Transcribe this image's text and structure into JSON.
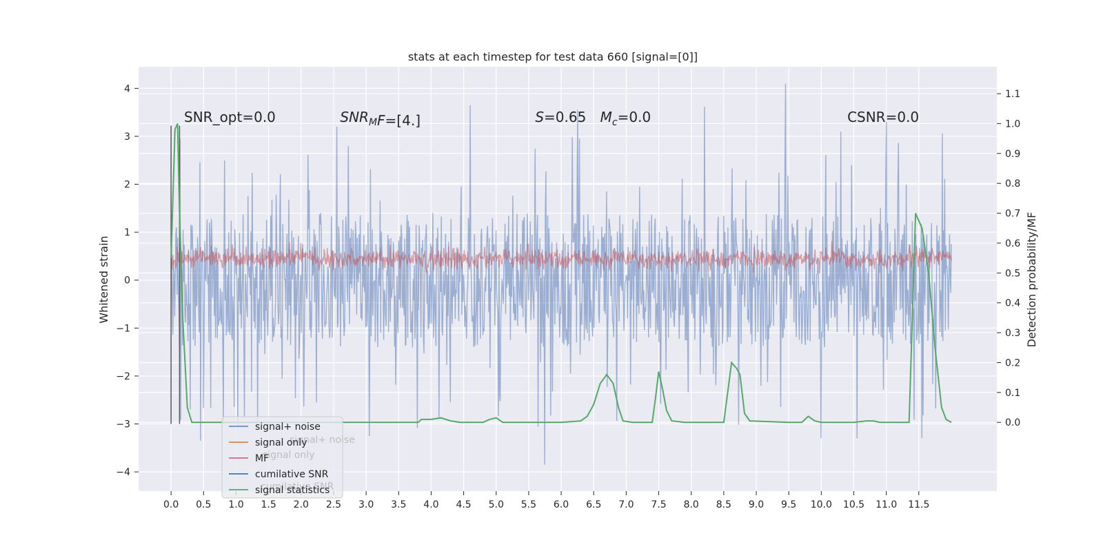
{
  "chart_data": {
    "type": "line",
    "title": "stats at each timestep for test data 660 [signal=[0]]",
    "xlabel": "",
    "ylabel_left": "Whitened strain",
    "ylabel_right": "Detection probability/MF",
    "xlim": [
      -0.5,
      12.7
    ],
    "ylim_left": [
      -4.4,
      4.45
    ],
    "ylim_right": [
      -0.23,
      1.19
    ],
    "x_ticks": [
      "0.0",
      "0.5",
      "1.0",
      "1.5",
      "2.0",
      "2.5",
      "3.0",
      "3.5",
      "4.0",
      "4.5",
      "5.0",
      "5.5",
      "6.0",
      "6.5",
      "7.0",
      "7.5",
      "8.0",
      "8.5",
      "9.0",
      "9.5",
      "10.0",
      "10.5",
      "11.0",
      "11.5"
    ],
    "y_ticks_left": [
      -4,
      -3,
      -2,
      -1,
      0,
      1,
      2,
      3,
      4
    ],
    "y_ticks_right": [
      "0.0",
      "0.1",
      "0.2",
      "0.3",
      "0.4",
      "0.5",
      "0.6",
      "0.7",
      "0.8",
      "0.9",
      "1.0",
      "1.1"
    ],
    "grid": true,
    "background": "#eaeaf2",
    "legend_location": "lower-left",
    "annotations": [
      {
        "id": "snr-opt",
        "text": "SNR_opt=0.0",
        "x": 0.2
      },
      {
        "id": "snr-mf",
        "math": true,
        "base": "SNR",
        "sub": "M",
        "rest": "F=[4.]",
        "x": 2.6
      },
      {
        "id": "s-val",
        "math": true,
        "italic": "S",
        "rest": "=0.65",
        "x": 5.6
      },
      {
        "id": "mc-val",
        "math": true,
        "base": "M",
        "sub": "c",
        "rest": "=0.0",
        "x": 6.6
      },
      {
        "id": "csnr",
        "text": "CSNR=0.0",
        "x": 10.4
      }
    ],
    "annotation_y": 3.3,
    "series": [
      {
        "name": "signal+ noise",
        "axis": "left",
        "color": "#4c72b0",
        "alpha": 0.5,
        "style": "noise-band",
        "x_range": [
          0.0,
          12.0
        ],
        "core_range": [
          -1.3,
          1.35
        ],
        "peak_max": 4.1,
        "trough_min": -3.85,
        "peaks": [
          [
            9.45,
            4.1
          ],
          [
            4.6,
            3.65
          ],
          [
            8.2,
            3.62
          ],
          [
            6.25,
            3.55
          ],
          [
            11.0,
            3.3
          ],
          [
            2.55,
            3.2
          ],
          [
            10.3,
            3.1
          ],
          [
            5.75,
            -3.85
          ],
          [
            0.45,
            -3.35
          ],
          [
            3.05,
            -3.25
          ],
          [
            11.55,
            -3.3
          ],
          [
            10.55,
            -3.3
          ],
          [
            10.0,
            -3.3
          ]
        ]
      },
      {
        "name": "signal only",
        "axis": "left",
        "color": "#dd8452",
        "values": []
      },
      {
        "name": "MF",
        "axis": "left",
        "color": "#c44e52",
        "alpha": 0.5,
        "style": "noise-band",
        "x_range": [
          0.0,
          12.0
        ],
        "core_range": [
          0.15,
          0.75
        ],
        "peak_max": 1.0,
        "trough_min": 0.0
      },
      {
        "name": "cumilative SNR",
        "axis": "left",
        "color": "#4c72b0",
        "values": []
      },
      {
        "name": "signal statistics",
        "axis": "right",
        "color": "#55a868",
        "x": [
          0.0,
          0.06,
          0.1,
          0.13,
          0.18,
          0.25,
          0.32,
          0.4,
          0.8,
          1.5,
          2.5,
          3.5,
          3.8,
          3.85,
          4.0,
          4.15,
          4.3,
          4.45,
          4.6,
          4.8,
          4.9,
          5.0,
          5.1,
          5.3,
          5.5,
          6.0,
          6.3,
          6.4,
          6.5,
          6.6,
          6.7,
          6.8,
          6.88,
          6.95,
          7.1,
          7.4,
          7.45,
          7.5,
          7.56,
          7.62,
          7.7,
          7.9,
          8.5,
          8.62,
          8.7,
          8.75,
          8.82,
          8.9,
          9.5,
          9.7,
          9.8,
          9.9,
          10.0,
          10.5,
          10.7,
          10.8,
          10.9,
          11.0,
          11.2,
          11.35,
          11.45,
          11.55,
          11.65,
          11.75,
          11.85,
          11.92,
          12.0
        ],
        "y": [
          0.55,
          0.98,
          1.0,
          0.7,
          0.35,
          0.05,
          0.0,
          0.0,
          0.0,
          0.0,
          0.0,
          0.0,
          0.0,
          0.01,
          0.01,
          0.015,
          0.005,
          0.0,
          0.0,
          0.0,
          0.01,
          0.015,
          0.0,
          0.0,
          0.0,
          0.0,
          0.005,
          0.02,
          0.06,
          0.13,
          0.16,
          0.13,
          0.05,
          0.005,
          0.0,
          0.0,
          0.08,
          0.17,
          0.11,
          0.04,
          0.005,
          0.0,
          0.0,
          0.2,
          0.18,
          0.16,
          0.03,
          0.005,
          0.0,
          0.0,
          0.02,
          0.005,
          0.0,
          0.0,
          0.005,
          0.005,
          0.0,
          0.0,
          0.0,
          0.0,
          0.7,
          0.65,
          0.5,
          0.25,
          0.05,
          0.01,
          0.0
        ]
      }
    ],
    "vertical_markers": [
      {
        "x": 0.0,
        "y_top": 3.22,
        "y_bottom": -3.0,
        "color": "#5a5a5a"
      },
      {
        "x": 0.13,
        "y_top": 3.22,
        "y_bottom": -3.0,
        "color": "#5a5a5a"
      }
    ],
    "legend_ghost_text": [
      "signal+ noise",
      "signal only",
      "cumilative SNR"
    ]
  }
}
